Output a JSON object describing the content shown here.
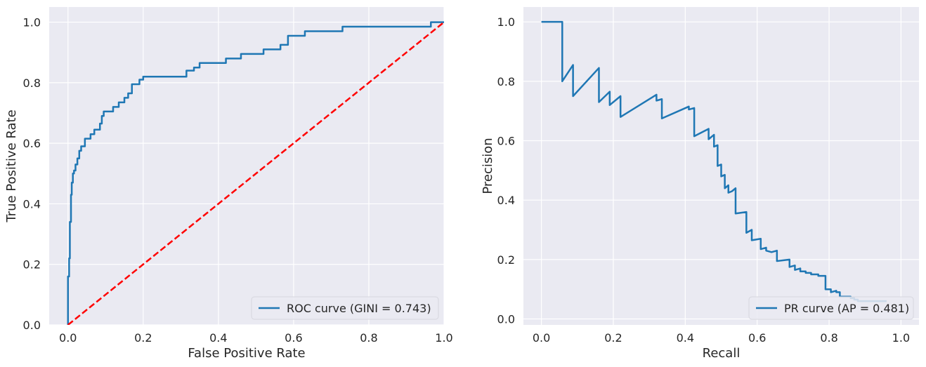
{
  "chart_data": [
    {
      "type": "line",
      "xlabel": "False Positive Rate",
      "ylabel": "True Positive Rate",
      "xlim": [
        -0.05,
        1.0
      ],
      "ylim": [
        0.0,
        1.05
      ],
      "xticks": [
        "0.0",
        "0.2",
        "0.4",
        "0.6",
        "0.8",
        "1.0"
      ],
      "yticks": [
        "0.0",
        "0.2",
        "0.4",
        "0.6",
        "0.8",
        "1.0"
      ],
      "grid": true,
      "legend_position": "lower-right",
      "series": [
        {
          "name": "ROC curve (GINI = 0.743)",
          "color": "#1f77b4",
          "style": "solid",
          "step": true,
          "x": [
            0.0,
            0.0,
            0.003,
            0.003,
            0.005,
            0.005,
            0.008,
            0.008,
            0.01,
            0.01,
            0.013,
            0.013,
            0.016,
            0.016,
            0.02,
            0.02,
            0.025,
            0.025,
            0.03,
            0.03,
            0.035,
            0.035,
            0.045,
            0.045,
            0.06,
            0.06,
            0.07,
            0.07,
            0.085,
            0.085,
            0.09,
            0.09,
            0.095,
            0.095,
            0.12,
            0.12,
            0.135,
            0.135,
            0.15,
            0.15,
            0.16,
            0.16,
            0.17,
            0.17,
            0.19,
            0.19,
            0.2,
            0.2,
            0.315,
            0.315,
            0.335,
            0.335,
            0.35,
            0.35,
            0.42,
            0.42,
            0.46,
            0.46,
            0.52,
            0.52,
            0.565,
            0.565,
            0.585,
            0.585,
            0.63,
            0.63,
            0.73,
            0.73,
            0.965,
            0.965,
            1.0
          ],
          "y": [
            0.0,
            0.16,
            0.16,
            0.22,
            0.22,
            0.34,
            0.34,
            0.43,
            0.43,
            0.47,
            0.47,
            0.5,
            0.5,
            0.51,
            0.51,
            0.53,
            0.53,
            0.55,
            0.55,
            0.575,
            0.575,
            0.59,
            0.59,
            0.615,
            0.615,
            0.63,
            0.63,
            0.645,
            0.645,
            0.665,
            0.665,
            0.69,
            0.69,
            0.705,
            0.705,
            0.72,
            0.72,
            0.735,
            0.735,
            0.75,
            0.75,
            0.765,
            0.765,
            0.795,
            0.795,
            0.81,
            0.81,
            0.82,
            0.82,
            0.84,
            0.84,
            0.85,
            0.85,
            0.865,
            0.865,
            0.88,
            0.88,
            0.895,
            0.895,
            0.91,
            0.91,
            0.925,
            0.925,
            0.955,
            0.955,
            0.97,
            0.97,
            0.985,
            0.985,
            1.0,
            1.0
          ]
        },
        {
          "color": "#ff0000",
          "style": "dashed",
          "x": [
            0.0,
            1.0
          ],
          "y": [
            0.0,
            1.0
          ]
        }
      ]
    },
    {
      "type": "line",
      "xlabel": "Recall",
      "ylabel": "Precision",
      "xlim": [
        -0.05,
        1.05
      ],
      "ylim": [
        -0.02,
        1.05
      ],
      "xticks": [
        "0.0",
        "0.2",
        "0.4",
        "0.6",
        "0.8",
        "1.0"
      ],
      "yticks": [
        "0.0",
        "0.2",
        "0.4",
        "0.6",
        "0.8",
        "1.0"
      ],
      "grid": true,
      "legend_position": "lower-right",
      "series": [
        {
          "name": "PR curve (AP = 0.481)",
          "color": "#1f77b4",
          "style": "solid",
          "x": [
            0.0,
            0.058,
            0.058,
            0.088,
            0.088,
            0.16,
            0.16,
            0.19,
            0.19,
            0.22,
            0.22,
            0.32,
            0.32,
            0.335,
            0.335,
            0.41,
            0.41,
            0.425,
            0.425,
            0.465,
            0.465,
            0.48,
            0.48,
            0.49,
            0.49,
            0.5,
            0.5,
            0.51,
            0.51,
            0.52,
            0.52,
            0.53,
            0.53,
            0.54,
            0.54,
            0.57,
            0.57,
            0.585,
            0.585,
            0.61,
            0.61,
            0.625,
            0.625,
            0.64,
            0.64,
            0.655,
            0.655,
            0.69,
            0.69,
            0.705,
            0.705,
            0.72,
            0.72,
            0.735,
            0.735,
            0.75,
            0.75,
            0.77,
            0.77,
            0.79,
            0.79,
            0.805,
            0.805,
            0.82,
            0.82,
            0.83,
            0.83,
            0.86,
            0.86,
            0.87,
            0.87,
            0.88,
            0.88,
            0.92,
            0.92,
            0.96,
            0.96
          ],
          "y": [
            1.0,
            1.0,
            0.8,
            0.855,
            0.75,
            0.845,
            0.73,
            0.765,
            0.72,
            0.75,
            0.68,
            0.755,
            0.735,
            0.74,
            0.675,
            0.715,
            0.705,
            0.71,
            0.615,
            0.64,
            0.605,
            0.62,
            0.58,
            0.585,
            0.515,
            0.52,
            0.48,
            0.485,
            0.44,
            0.45,
            0.425,
            0.43,
            0.43,
            0.44,
            0.355,
            0.36,
            0.29,
            0.3,
            0.265,
            0.27,
            0.235,
            0.24,
            0.23,
            0.225,
            0.225,
            0.23,
            0.195,
            0.2,
            0.175,
            0.18,
            0.165,
            0.17,
            0.16,
            0.16,
            0.155,
            0.155,
            0.15,
            0.15,
            0.145,
            0.145,
            0.1,
            0.1,
            0.09,
            0.095,
            0.09,
            0.09,
            0.075,
            0.075,
            0.07,
            0.07,
            0.065,
            0.065,
            0.06,
            0.06,
            0.06,
            0.06,
            0.06
          ]
        }
      ]
    }
  ]
}
